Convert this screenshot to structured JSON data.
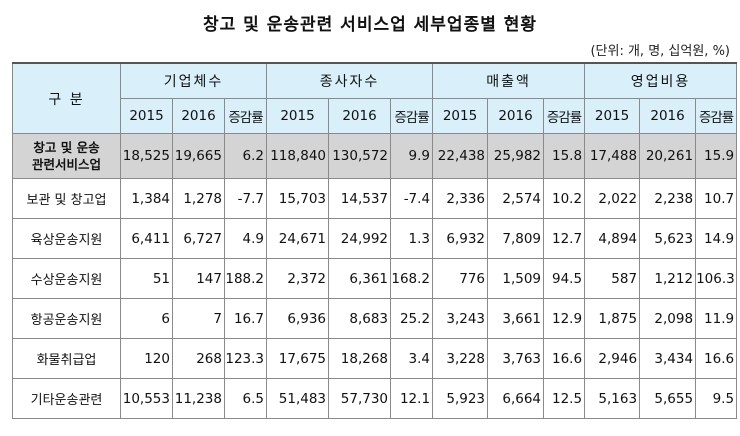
{
  "title": "창고 및 운송관련 서비스업 세부업종별 현황",
  "unit": "(단위: 개, 명, 십억원, %)",
  "header": {
    "category": "구 분",
    "groups": [
      "기업체수",
      "종사자수",
      "매출액",
      "영업비용"
    ],
    "years": [
      "2015",
      "2016",
      "증감률"
    ]
  },
  "total": {
    "label_line1": "창고 및 운송",
    "label_line2": "관련서비스업",
    "values": [
      "18,525",
      "19,665",
      "6.2",
      "118,840",
      "130,572",
      "9.9",
      "22,438",
      "25,982",
      "15.8",
      "17,488",
      "20,261",
      "15.9"
    ]
  },
  "rows": [
    {
      "label": "보관 및 창고업",
      "values": [
        "1,384",
        "1,278",
        "-7.7",
        "15,703",
        "14,537",
        "-7.4",
        "2,336",
        "2,574",
        "10.2",
        "2,022",
        "2,238",
        "10.7"
      ]
    },
    {
      "label": "육상운송지원",
      "values": [
        "6,411",
        "6,727",
        "4.9",
        "24,671",
        "24,992",
        "1.3",
        "6,932",
        "7,809",
        "12.7",
        "4,894",
        "5,623",
        "14.9"
      ]
    },
    {
      "label": "수상운송지원",
      "values": [
        "51",
        "147",
        "188.2",
        "2,372",
        "6,361",
        "168.2",
        "776",
        "1,509",
        "94.5",
        "587",
        "1,212",
        "106.3"
      ]
    },
    {
      "label": "항공운송지원",
      "values": [
        "6",
        "7",
        "16.7",
        "6,936",
        "8,683",
        "25.2",
        "3,243",
        "3,661",
        "12.9",
        "1,875",
        "2,098",
        "11.9"
      ]
    },
    {
      "label": "화물취급업",
      "values": [
        "120",
        "268",
        "123.3",
        "17,675",
        "18,268",
        "3.4",
        "3,228",
        "3,763",
        "16.6",
        "2,946",
        "3,434",
        "16.6"
      ]
    },
    {
      "label": "기타운송관련",
      "values": [
        "10,553",
        "11,238",
        "6.5",
        "51,483",
        "57,730",
        "12.1",
        "5,923",
        "6,664",
        "12.5",
        "5,163",
        "5,655",
        "9.5"
      ]
    }
  ]
}
